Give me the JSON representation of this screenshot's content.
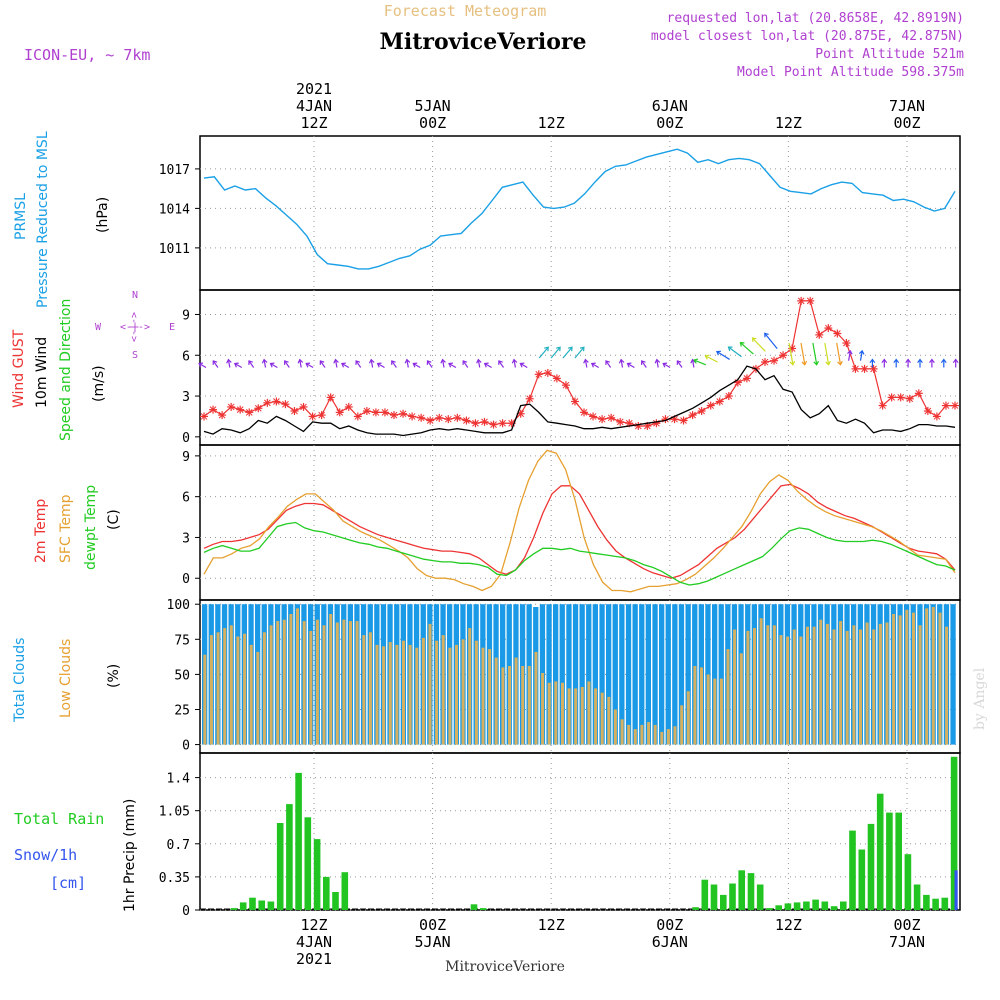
{
  "header": {
    "forecast_title": "Forecast Meteogram",
    "location": "MitroviceVeriore",
    "model": "ICON-EU, ~ 7km",
    "requested": "requested lon,lat (20.8658E, 42.8919N)",
    "closest": "model closest lon,lat (20.875E, 42.875N)",
    "point_altitude": "Point Altitude 521m",
    "model_altitude": "Model Point Altitude 598.375m",
    "footer_location": "MitroviceVeriore",
    "watermark": "by Angel"
  },
  "time_axis": {
    "top_labels": [
      {
        "lines": [
          "2021",
          "4JAN",
          "12Z"
        ],
        "hour": 12
      },
      {
        "lines": [
          "5JAN",
          "00Z"
        ],
        "hour": 24
      },
      {
        "lines": [
          "12Z"
        ],
        "hour": 36
      },
      {
        "lines": [
          "6JAN",
          "00Z"
        ],
        "hour": 48
      },
      {
        "lines": [
          "12Z"
        ],
        "hour": 60
      },
      {
        "lines": [
          "7JAN",
          "00Z"
        ],
        "hour": 72
      }
    ],
    "bottom_labels": [
      {
        "lines": [
          "12Z",
          "4JAN",
          "2021"
        ],
        "hour": 12
      },
      {
        "lines": [
          "00Z",
          "5JAN"
        ],
        "hour": 24
      },
      {
        "lines": [
          "12Z"
        ],
        "hour": 36
      },
      {
        "lines": [
          "00Z",
          "6JAN"
        ],
        "hour": 48
      },
      {
        "lines": [
          "12Z"
        ],
        "hour": 60
      },
      {
        "lines": [
          "00Z",
          "7JAN"
        ],
        "hour": 72
      }
    ]
  },
  "panel_labels": {
    "pressure": {
      "line1": "PRMSL",
      "line2": "Pressure Reduced to MSL",
      "unit": "(hPa)"
    },
    "wind": {
      "gust": "Wind GUST",
      "wind10": "10m Wind",
      "speed": "Speed and Direction",
      "unit": "(m/s)",
      "compass_n": "N",
      "compass_s": "S",
      "compass_w": "W",
      "compass_e": "E",
      "compass_h": "<-|->",
      "compass_v": "<-|->"
    },
    "temp": {
      "t2m": "2m Temp",
      "sfc": "SFC Temp",
      "dewpt": "dewpt Temp",
      "unit": "(C)"
    },
    "clouds": {
      "total": "Total Clouds",
      "low": "Low Clouds",
      "unit": "(%)"
    },
    "precip": {
      "rain": "Total Rain",
      "snow": "Snow/1h",
      "cm": "[cm]",
      "unit": "1hr Precip (mm)"
    }
  },
  "colors": {
    "pressure": "#1aa0e6",
    "gust": "#ee3333",
    "wind": "#000000",
    "t2m": "#ee3333",
    "sfc": "#e6a030",
    "dewpt": "#22cc22",
    "total_clouds": "#1a9ae6",
    "low_clouds": "#d4b060",
    "rain": "#22c422",
    "snow": "#3355ee",
    "label_purple": "#b040d0",
    "label_orange": "#e6a030",
    "label_blue": "#1aa0e6",
    "label_green": "#22cc22",
    "label_red": "#ee3333"
  },
  "chart_data": [
    {
      "type": "line",
      "name": "PRMSL",
      "ylabel": "(hPa)",
      "yticks": [
        1011,
        1014,
        1017
      ],
      "ylim": [
        1007.8,
        1019.5
      ],
      "x_hours_start": 1,
      "x_hours_step": 1,
      "series": [
        {
          "name": "PRMSL",
          "values": [
            1016.3,
            1016.4,
            1015.4,
            1015.7,
            1015.4,
            1015.5,
            1014.8,
            1014.2,
            1013.5,
            1012.8,
            1011.9,
            1010.5,
            1009.8,
            1009.7,
            1009.6,
            1009.4,
            1009.4,
            1009.6,
            1009.9,
            1010.2,
            1010.4,
            1010.9,
            1011.2,
            1011.9,
            1012.0,
            1012.1,
            1012.9,
            1013.6,
            1014.6,
            1015.6,
            1015.8,
            1016.0,
            1015.0,
            1014.1,
            1014.0,
            1014.1,
            1014.4,
            1015.1,
            1016.0,
            1016.8,
            1017.2,
            1017.3,
            1017.6,
            1017.9,
            1018.1,
            1018.3,
            1018.5,
            1018.2,
            1017.5,
            1017.7,
            1017.4,
            1017.7,
            1017.8,
            1017.7,
            1017.4,
            1016.5,
            1015.6,
            1015.3,
            1015.2,
            1015.1,
            1015.5,
            1015.8,
            1016.0,
            1015.9,
            1015.2,
            1015.1,
            1015.0,
            1014.6,
            1014.7,
            1014.5,
            1014.1,
            1013.8,
            1014.0,
            1015.3
          ]
        }
      ]
    },
    {
      "type": "line",
      "name": "Wind",
      "ylabel": "(m/s)",
      "yticks": [
        0,
        3,
        6,
        9
      ],
      "ylim": [
        -0.6,
        10.8
      ],
      "series": [
        {
          "name": "Wind GUST",
          "values": [
            1.5,
            2.0,
            1.6,
            2.2,
            2.0,
            1.8,
            2.1,
            2.5,
            2.6,
            2.4,
            1.9,
            2.2,
            1.5,
            1.6,
            2.9,
            1.8,
            2.2,
            1.5,
            1.9,
            1.8,
            1.8,
            1.6,
            1.7,
            1.5,
            1.4,
            1.2,
            1.4,
            1.3,
            1.4,
            1.2,
            1.0,
            1.1,
            0.9,
            1.0,
            1.0,
            1.7,
            2.8,
            4.6,
            4.7,
            4.3,
            3.8,
            2.6,
            1.8,
            1.5,
            1.3,
            1.4,
            1.1,
            1.0,
            0.8,
            0.8,
            1.0,
            1.3,
            1.3,
            1.2,
            1.6,
            1.9,
            2.3,
            2.6,
            3.0,
            4.0,
            4.3,
            5.0,
            5.5,
            5.6,
            6.0,
            6.5,
            10.0,
            10.0,
            7.5,
            8.0,
            7.6,
            6.9,
            5.0,
            5.0,
            5.0,
            2.3,
            2.9,
            2.9,
            2.8,
            3.2,
            1.9,
            1.5,
            2.3,
            2.3
          ]
        },
        {
          "name": "10m Wind",
          "values": [
            0.4,
            0.2,
            0.6,
            0.5,
            0.3,
            0.6,
            1.2,
            1.0,
            1.5,
            1.2,
            0.8,
            0.4,
            1.1,
            1.0,
            1.0,
            0.6,
            0.8,
            0.5,
            0.3,
            0.2,
            0.2,
            0.2,
            0.1,
            0.2,
            0.3,
            0.5,
            0.6,
            0.5,
            0.6,
            0.5,
            0.4,
            0.3,
            0.3,
            0.3,
            0.5,
            2.3,
            2.4,
            1.8,
            1.1,
            1.0,
            0.9,
            0.8,
            0.6,
            0.6,
            0.7,
            0.6,
            0.7,
            0.8,
            0.9,
            1.0,
            1.1,
            1.2,
            1.5,
            1.8,
            2.1,
            2.5,
            2.9,
            3.4,
            3.8,
            4.2,
            5.2,
            5.0,
            4.2,
            4.5,
            3.5,
            3.3,
            2.0,
            1.4,
            1.7,
            2.3,
            1.2,
            1.0,
            1.3,
            1.0,
            0.3,
            0.5,
            0.5,
            0.4,
            0.6,
            0.9,
            0.9,
            0.8,
            0.8,
            0.7
          ]
        }
      ]
    },
    {
      "type": "line",
      "name": "Temperature",
      "ylabel": "(C)",
      "yticks": [
        0,
        3,
        6,
        9
      ],
      "ylim": [
        -1.6,
        9.8
      ],
      "series": [
        {
          "name": "2m Temp",
          "values": [
            2.2,
            2.5,
            2.7,
            2.7,
            2.8,
            3.0,
            3.2,
            3.6,
            4.3,
            5.0,
            5.3,
            5.5,
            5.5,
            5.4,
            5.0,
            4.6,
            4.2,
            3.8,
            3.5,
            3.2,
            3.0,
            2.8,
            2.6,
            2.4,
            2.2,
            2.1,
            2.0,
            2.0,
            1.9,
            1.8,
            1.5,
            1.0,
            0.5,
            0.3,
            0.6,
            1.5,
            3.0,
            4.8,
            6.2,
            6.8,
            6.8,
            6.2,
            5.0,
            3.8,
            2.8,
            2.0,
            1.5,
            1.1,
            0.7,
            0.4,
            0.2,
            0.0,
            0.2,
            0.6,
            1.0,
            1.6,
            2.2,
            2.6,
            3.0,
            3.6,
            4.4,
            5.2,
            6.0,
            6.8,
            6.9,
            6.6,
            6.2,
            5.6,
            5.2,
            4.9,
            4.6,
            4.4,
            4.1,
            3.8,
            3.4,
            3.0,
            2.6,
            2.2,
            2.0,
            1.9,
            1.8,
            1.4,
            0.6
          ]
        },
        {
          "name": "SFC Temp",
          "values": [
            0.3,
            1.5,
            1.5,
            1.8,
            2.2,
            2.4,
            2.9,
            3.8,
            4.5,
            5.3,
            5.8,
            6.2,
            6.2,
            5.6,
            5.0,
            4.2,
            3.8,
            3.4,
            3.1,
            2.8,
            2.4,
            2.0,
            1.5,
            0.7,
            0.2,
            0.0,
            0.0,
            -0.1,
            -0.4,
            -0.6,
            -0.9,
            -0.6,
            0.3,
            2.6,
            5.2,
            7.2,
            8.6,
            9.4,
            9.2,
            8.0,
            5.8,
            3.0,
            1.0,
            -0.3,
            -0.9,
            -0.9,
            -1.0,
            -0.8,
            -0.6,
            -0.6,
            -0.5,
            -0.4,
            -0.1,
            0.3,
            0.9,
            1.5,
            2.2,
            3.0,
            3.8,
            4.9,
            6.2,
            7.1,
            7.6,
            7.2,
            6.4,
            5.8,
            5.3,
            4.9,
            4.6,
            4.4,
            4.2,
            4.0,
            3.8,
            3.5,
            3.1,
            2.7,
            2.2,
            1.7,
            1.6,
            1.5,
            1.4,
            0.4
          ]
        },
        {
          "name": "dewpt Temp",
          "values": [
            1.9,
            2.2,
            2.4,
            2.2,
            2.0,
            2.0,
            2.2,
            3.0,
            3.8,
            4.0,
            4.1,
            3.7,
            3.5,
            3.4,
            3.2,
            3.0,
            2.8,
            2.6,
            2.5,
            2.3,
            2.2,
            2.0,
            1.8,
            1.6,
            1.4,
            1.3,
            1.2,
            1.2,
            1.1,
            1.1,
            1.0,
            0.8,
            0.3,
            0.2,
            0.6,
            1.3,
            1.8,
            2.2,
            2.2,
            2.1,
            2.2,
            2.0,
            1.9,
            1.8,
            1.7,
            1.6,
            1.5,
            1.3,
            1.0,
            0.8,
            0.5,
            0.1,
            -0.3,
            -0.5,
            -0.4,
            -0.2,
            0.1,
            0.4,
            0.7,
            1.0,
            1.3,
            1.6,
            2.2,
            2.9,
            3.5,
            3.7,
            3.6,
            3.3,
            3.0,
            2.8,
            2.7,
            2.7,
            2.7,
            2.8,
            2.7,
            2.5,
            2.2,
            1.9,
            1.6,
            1.3,
            1.0,
            0.9,
            0.6
          ]
        }
      ]
    },
    {
      "type": "bar",
      "name": "Clouds",
      "ylabel": "(%)",
      "yticks": [
        0,
        25,
        50,
        75,
        100
      ],
      "ylim": [
        -6,
        103
      ],
      "series": [
        {
          "name": "Total Clouds",
          "values": [
            100,
            100,
            100,
            100,
            100,
            100,
            100,
            100,
            100,
            100,
            100,
            100,
            100,
            100,
            100,
            100,
            100,
            100,
            100,
            100,
            100,
            100,
            100,
            100,
            100,
            100,
            100,
            100,
            100,
            100,
            100,
            100,
            100,
            100,
            100,
            100,
            100,
            100,
            100,
            100,
            100,
            100,
            100,
            100,
            100,
            100,
            100,
            100,
            100,
            100,
            98,
            100,
            100,
            100,
            100,
            100,
            100,
            100,
            100,
            100,
            100,
            100,
            100,
            100,
            100,
            100,
            100,
            100,
            100,
            100,
            100,
            100,
            100,
            100,
            100,
            100,
            100,
            100,
            100,
            100,
            100,
            100,
            100,
            100,
            100,
            100,
            100,
            100,
            100,
            100,
            100,
            100,
            100,
            100,
            100,
            100,
            100,
            100,
            100,
            100,
            100,
            100,
            100,
            100,
            100,
            100,
            100,
            100,
            100,
            100,
            100,
            100,
            100,
            100
          ]
        },
        {
          "name": "Low Clouds",
          "values": [
            64,
            78,
            80,
            83,
            85,
            77,
            79,
            71,
            66,
            80,
            85,
            88,
            89,
            93,
            97,
            88,
            81,
            89,
            85,
            93,
            87,
            89,
            88,
            88,
            78,
            80,
            71,
            70,
            73,
            71,
            74,
            71,
            69,
            76,
            86,
            74,
            78,
            69,
            71,
            75,
            83,
            74,
            69,
            68,
            62,
            55,
            56,
            62,
            56,
            56,
            66,
            51,
            44,
            45,
            44,
            40,
            40,
            41,
            45,
            40,
            37,
            34,
            25,
            18,
            14,
            11,
            14,
            16,
            14,
            9,
            11,
            13,
            28,
            38,
            56,
            55,
            50,
            47,
            47,
            68,
            82,
            65,
            81,
            83,
            90,
            85,
            85,
            78,
            77,
            82,
            77,
            84,
            84,
            89,
            86,
            82,
            88,
            81,
            85,
            82,
            87,
            82,
            86,
            87,
            93,
            92,
            96,
            94,
            85,
            97,
            98,
            94,
            84
          ]
        }
      ]
    },
    {
      "type": "bar",
      "name": "Precipitation",
      "ylabel": "1hr Precip (mm)",
      "yticks": [
        0,
        0.35,
        0.7,
        1.05,
        1.4
      ],
      "ylim": [
        0,
        1.66
      ],
      "series": [
        {
          "name": "Total Rain",
          "values": [
            0,
            0,
            0,
            0.02,
            0.08,
            0.13,
            0.1,
            0.09,
            0.92,
            1.12,
            1.45,
            0.98,
            0.75,
            0.35,
            0.19,
            0.4,
            0,
            0,
            0,
            0,
            0,
            0,
            0,
            0,
            0,
            0,
            0,
            0,
            0,
            0.06,
            0.02,
            0,
            0,
            0,
            0,
            0,
            0,
            0,
            0,
            0,
            0,
            0,
            0,
            0,
            0,
            0,
            0,
            0,
            0,
            0,
            0,
            0,
            0,
            0.03,
            0.32,
            0.27,
            0.16,
            0.28,
            0.42,
            0.39,
            0.27,
            0.02,
            0.05,
            0.07,
            0.08,
            0.09,
            0.11,
            0.09,
            0.04,
            0.09,
            0.84,
            0.64,
            0.91,
            1.23,
            1.03,
            1.03,
            0.59,
            0.27,
            0.16,
            0.12,
            0.13,
            1.62
          ]
        },
        {
          "name": "Snow/1h",
          "values": [
            0,
            0,
            0,
            0,
            0,
            0,
            0,
            0,
            0,
            0,
            0,
            0,
            0,
            0,
            0,
            0,
            0,
            0,
            0,
            0,
            0,
            0,
            0,
            0,
            0,
            0,
            0,
            0,
            0,
            0,
            0,
            0,
            0,
            0,
            0,
            0,
            0,
            0,
            0,
            0,
            0,
            0,
            0,
            0,
            0,
            0,
            0,
            0,
            0,
            0,
            0,
            0,
            0,
            0,
            0,
            0,
            0,
            0,
            0,
            0,
            0,
            0,
            0,
            0,
            0,
            0,
            0,
            0,
            0,
            0,
            0,
            0,
            0,
            0,
            0,
            0,
            0,
            0,
            0,
            0,
            0,
            0.42
          ]
        }
      ]
    }
  ]
}
